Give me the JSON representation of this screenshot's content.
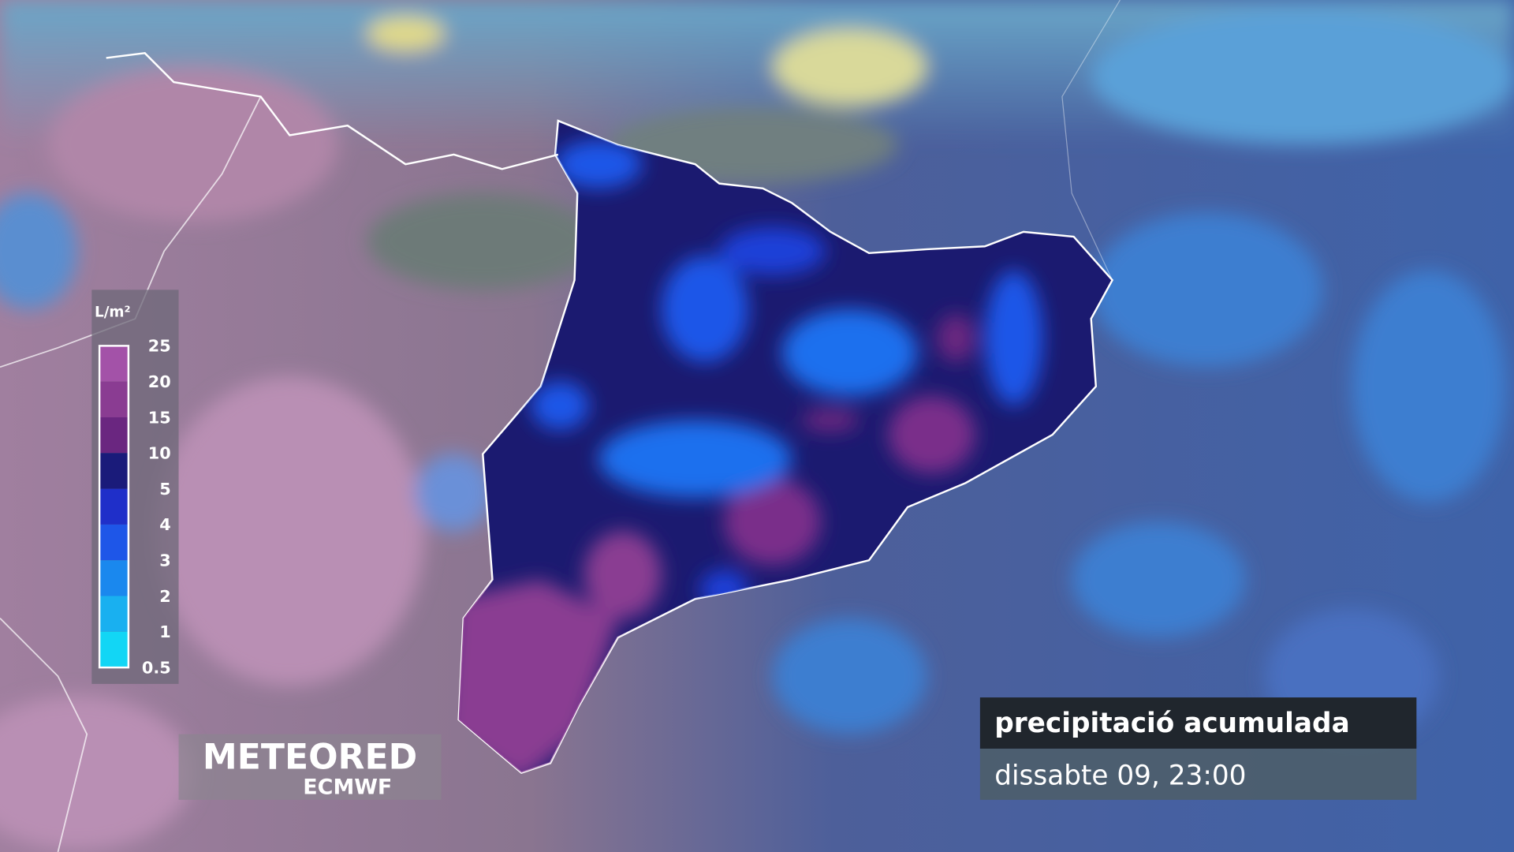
{
  "legend": {
    "unit": "L/m²",
    "labels": [
      "25",
      "20",
      "15",
      "10",
      "5",
      "4",
      "3",
      "2",
      "1",
      "0.5"
    ],
    "colors": [
      "#a352a8",
      "#8a3c92",
      "#6a2680",
      "#1a1b7a",
      "#1f2fc9",
      "#1e56e8",
      "#1a88ee",
      "#19b0f0",
      "#12d6f5"
    ]
  },
  "logo": {
    "brand": "METEORED",
    "source": "ECMWF"
  },
  "caption": {
    "title": "precipitació acumulada",
    "time": "dissabte 09, 23:00"
  }
}
